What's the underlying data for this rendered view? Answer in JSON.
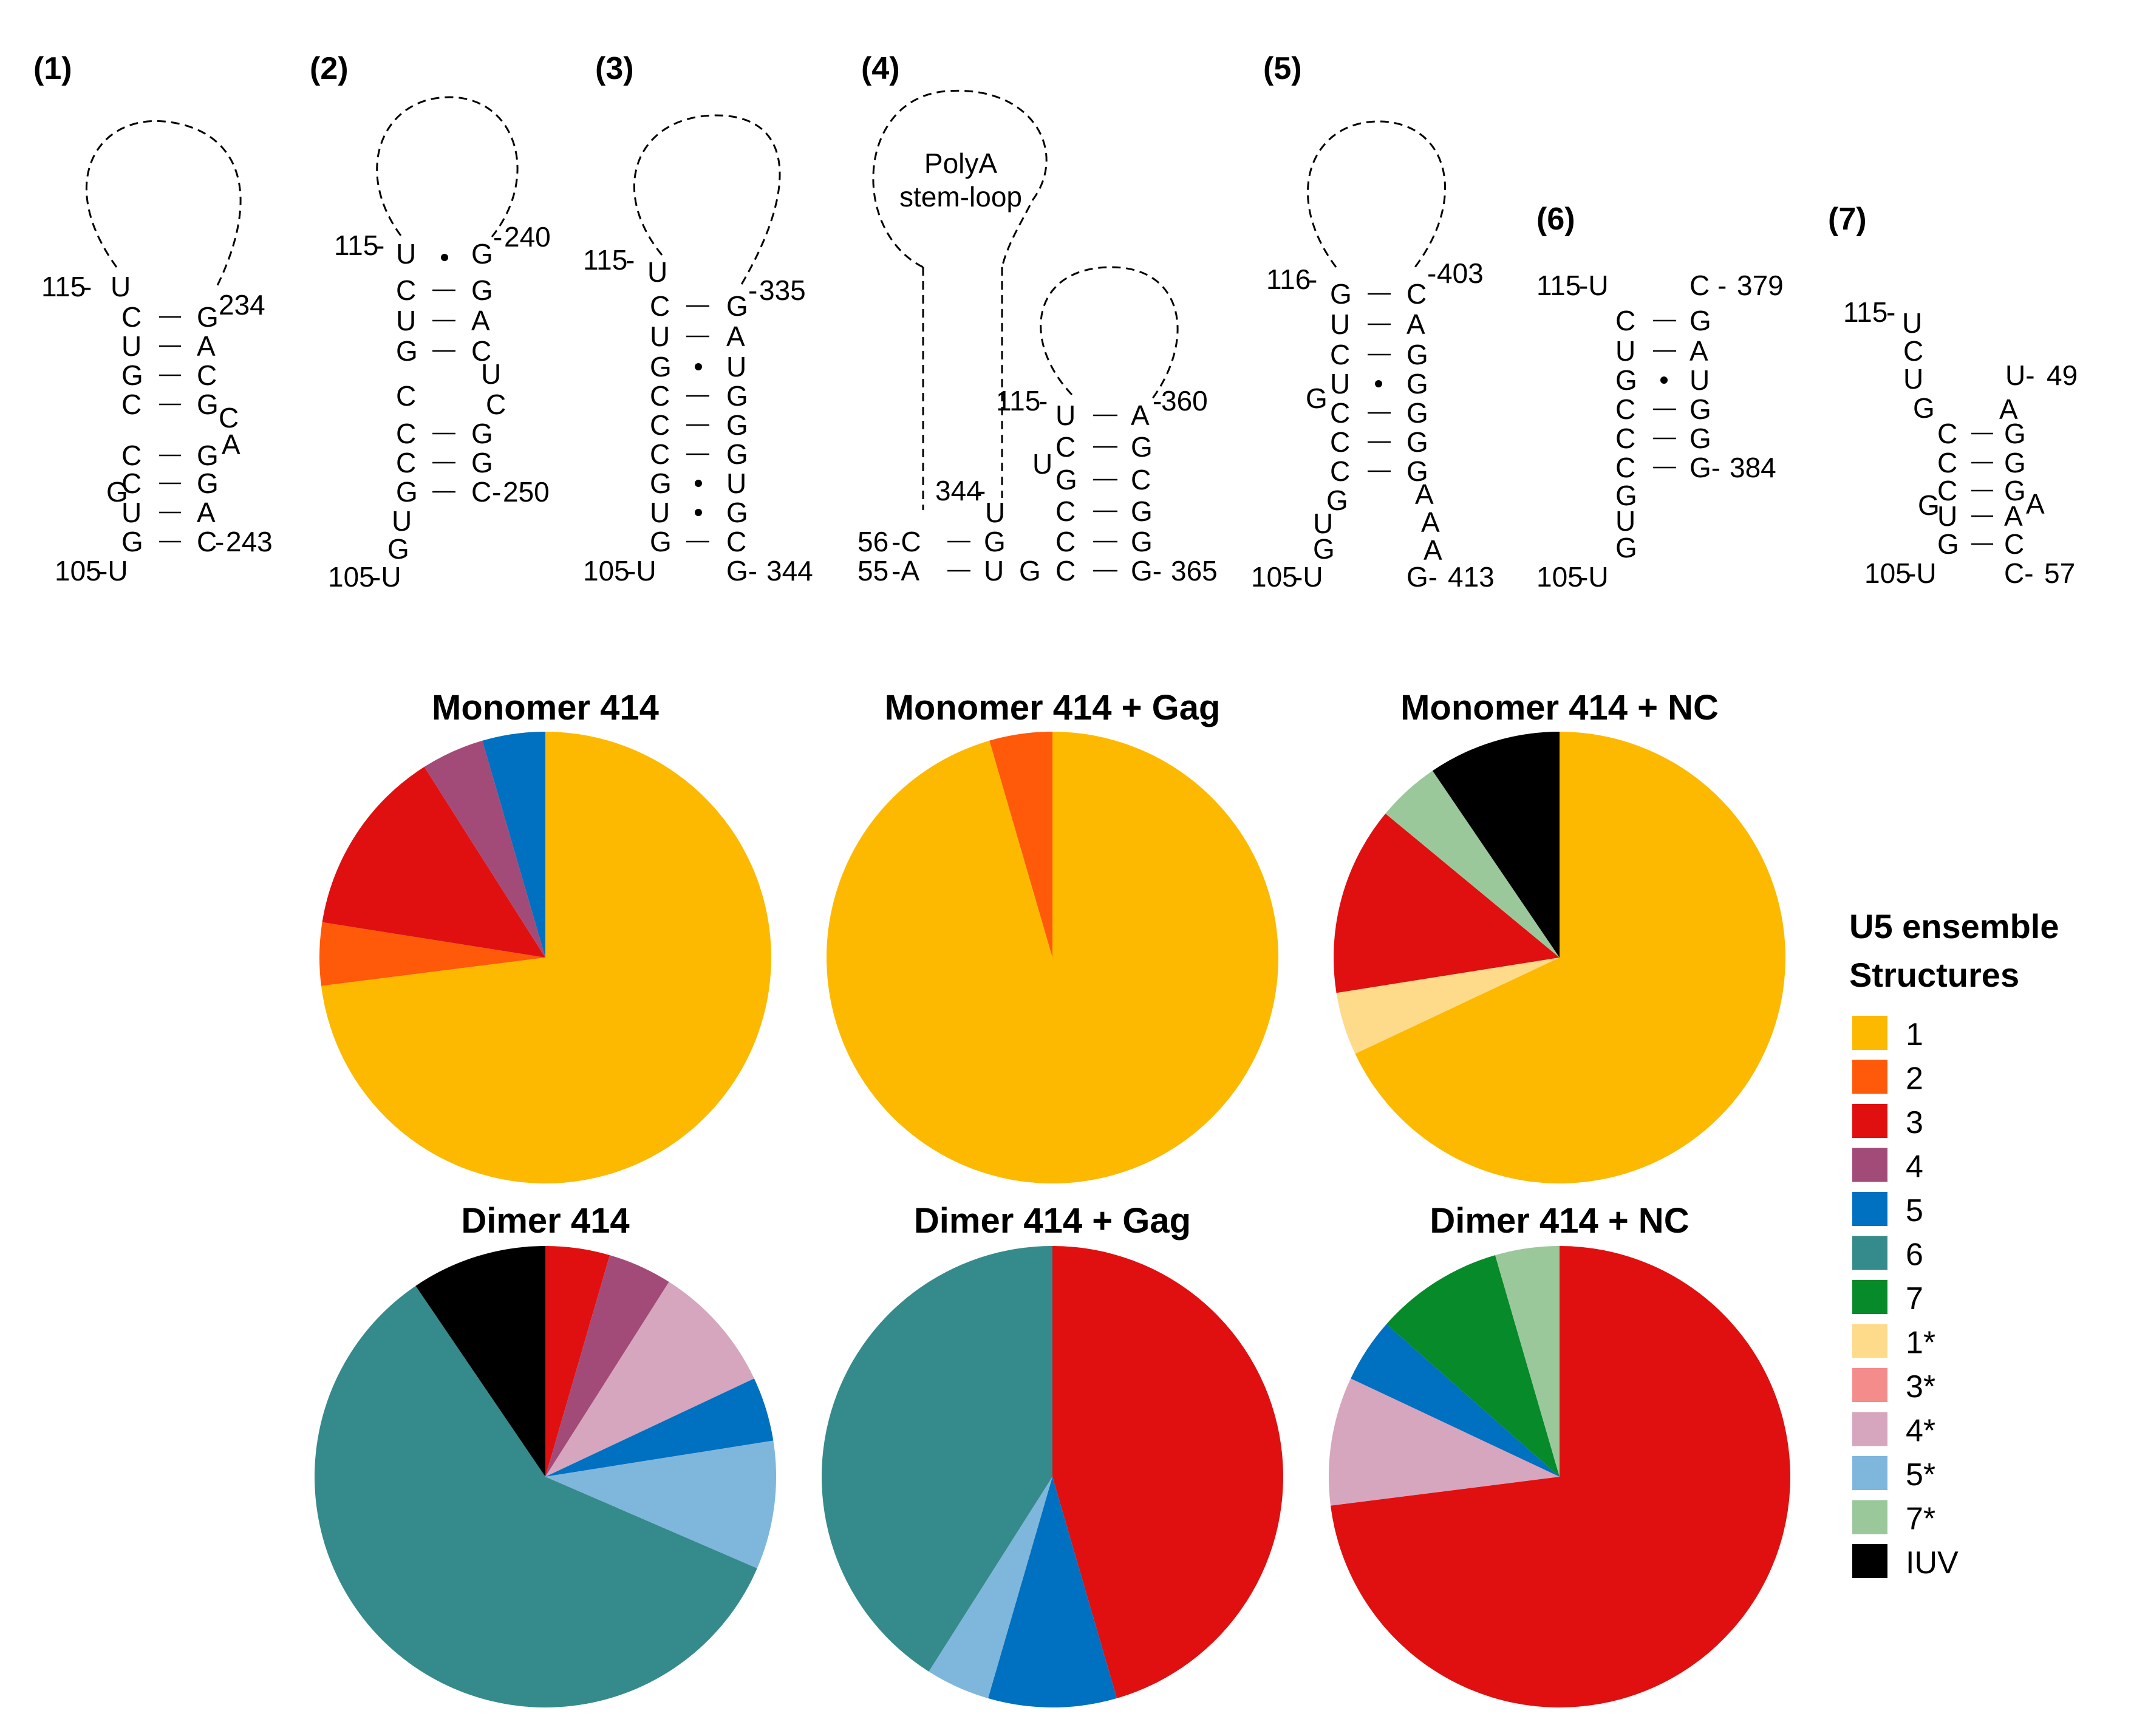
{
  "panels": [
    "(1)",
    "(2)",
    "(3)",
    "(4)",
    "(5)",
    "(6)",
    "(7)"
  ],
  "structure_texts": {
    "p4_loop_label_1": "PolyA",
    "p4_loop_label_2": "stem-loop"
  },
  "positions": {
    "p1": [
      "115",
      "234",
      "243",
      "105"
    ],
    "p2": [
      "115",
      "240",
      "250",
      "105"
    ],
    "p3": [
      "115",
      "335",
      "344",
      "105"
    ],
    "p4": [
      "344",
      "56",
      "55",
      "115",
      "360",
      "365"
    ],
    "p5": [
      "116",
      "403",
      "413",
      "105"
    ],
    "p6": [
      "115",
      "379",
      "384",
      "105"
    ],
    "p7": [
      "115",
      "49",
      "57",
      "105"
    ]
  },
  "legend": {
    "title_line1": "U5 ensemble",
    "title_line2": "Structures"
  },
  "colors": {
    "1": "#FDB900",
    "1*": "#FEDB8B",
    "2": "#FF5A0A",
    "3": "#E01010",
    "3*": "#F58C8C",
    "4": "#A24B78",
    "4*": "#D5A6BD",
    "5": "#0070C0",
    "5*": "#7FB6DC",
    "6": "#358B8B",
    "7": "#078A2A",
    "7*": "#9BC89B",
    "IUV": "#000000"
  },
  "chart_data": [
    {
      "type": "pie",
      "title": "Monomer 414",
      "labels": [
        "1",
        "2",
        "3",
        "4",
        "5"
      ],
      "values": [
        73,
        4.5,
        13.5,
        4.5,
        4.5
      ]
    },
    {
      "type": "pie",
      "title": "Monomer 414 + Gag",
      "labels": [
        "1",
        "2"
      ],
      "values": [
        95.5,
        4.5
      ]
    },
    {
      "type": "pie",
      "title": "Monomer 414 + NC",
      "labels": [
        "1",
        "1*",
        "3",
        "7*",
        "IUV"
      ],
      "values": [
        68,
        4.5,
        13.5,
        4.5,
        9.5
      ]
    },
    {
      "type": "pie",
      "title": "Dimer 414",
      "labels": [
        "3",
        "4",
        "4*",
        "5",
        "5*",
        "6",
        "IUV"
      ],
      "values": [
        4.5,
        4.5,
        9,
        4.5,
        9,
        59,
        9.5
      ]
    },
    {
      "type": "pie",
      "title": "Dimer 414 + Gag",
      "labels": [
        "3",
        "5",
        "5*",
        "6"
      ],
      "values": [
        45.5,
        9,
        4.5,
        41
      ]
    },
    {
      "type": "pie",
      "title": "Dimer 414 + NC",
      "labels": [
        "3",
        "4*",
        "5",
        "7",
        "7*"
      ],
      "values": [
        73,
        9,
        4.5,
        9,
        4.5
      ]
    }
  ]
}
